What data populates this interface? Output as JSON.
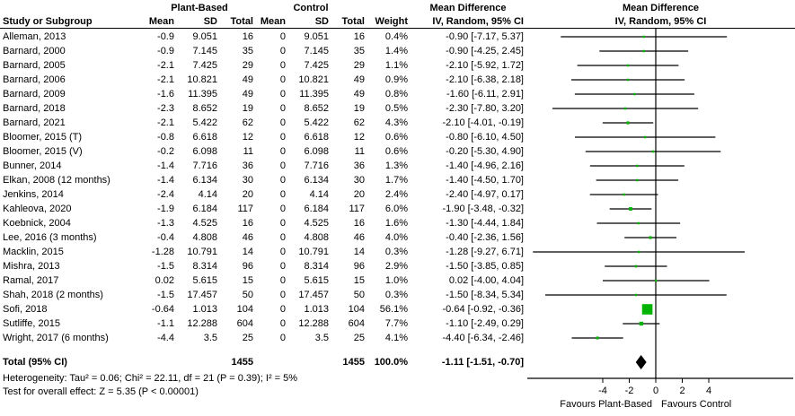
{
  "header": {
    "study_col": "Study or Subgroup",
    "group1": "Plant-Based",
    "group2": "Control",
    "mean_col": "Mean",
    "sd_col": "SD",
    "total_col": "Total",
    "weight_col": "Weight",
    "md_title_line1": "Mean Difference",
    "md_title_line2": "IV, Random, 95% CI",
    "plot_title_line1": "Mean Difference",
    "plot_title_line2": "IV, Random, 95% CI"
  },
  "chart_data": {
    "type": "forest",
    "effect_measure": "Mean Difference",
    "method": "IV, Random, 95% CI",
    "studies": [
      {
        "name": "Alleman, 2013",
        "mean1": "-0.9",
        "sd1": "9.051",
        "n1": "16",
        "mean2": "0",
        "sd2": "9.051",
        "n2": "16",
        "weight": "0.4%",
        "weight_pct": 0.4,
        "md": -0.9,
        "ci_low": -7.17,
        "ci_high": 5.37,
        "md_text": "-0.90 [-7.17, 5.37]"
      },
      {
        "name": "Barnard, 2000",
        "mean1": "-0.9",
        "sd1": "7.145",
        "n1": "35",
        "mean2": "0",
        "sd2": "7.145",
        "n2": "35",
        "weight": "1.4%",
        "weight_pct": 1.4,
        "md": -0.9,
        "ci_low": -4.25,
        "ci_high": 2.45,
        "md_text": "-0.90 [-4.25, 2.45]"
      },
      {
        "name": "Barnard, 2005",
        "mean1": "-2.1",
        "sd1": "7.425",
        "n1": "29",
        "mean2": "0",
        "sd2": "7.425",
        "n2": "29",
        "weight": "1.1%",
        "weight_pct": 1.1,
        "md": -2.1,
        "ci_low": -5.92,
        "ci_high": 1.72,
        "md_text": "-2.10 [-5.92, 1.72]"
      },
      {
        "name": "Barnard, 2006",
        "mean1": "-2.1",
        "sd1": "10.821",
        "n1": "49",
        "mean2": "0",
        "sd2": "10.821",
        "n2": "49",
        "weight": "0.9%",
        "weight_pct": 0.9,
        "md": -2.1,
        "ci_low": -6.38,
        "ci_high": 2.18,
        "md_text": "-2.10 [-6.38, 2.18]"
      },
      {
        "name": "Barnard, 2009",
        "mean1": "-1.6",
        "sd1": "11.395",
        "n1": "49",
        "mean2": "0",
        "sd2": "11.395",
        "n2": "49",
        "weight": "0.8%",
        "weight_pct": 0.8,
        "md": -1.6,
        "ci_low": -6.11,
        "ci_high": 2.91,
        "md_text": "-1.60 [-6.11, 2.91]"
      },
      {
        "name": "Barnard, 2018",
        "mean1": "-2.3",
        "sd1": "8.652",
        "n1": "19",
        "mean2": "0",
        "sd2": "8.652",
        "n2": "19",
        "weight": "0.5%",
        "weight_pct": 0.5,
        "md": -2.3,
        "ci_low": -7.8,
        "ci_high": 3.2,
        "md_text": "-2.30 [-7.80, 3.20]"
      },
      {
        "name": "Barnard, 2021",
        "mean1": "-2.1",
        "sd1": "5.422",
        "n1": "62",
        "mean2": "0",
        "sd2": "5.422",
        "n2": "62",
        "weight": "4.3%",
        "weight_pct": 4.3,
        "md": -2.1,
        "ci_low": -4.01,
        "ci_high": -0.19,
        "md_text": "-2.10 [-4.01, -0.19]"
      },
      {
        "name": "Bloomer, 2015 (T)",
        "mean1": "-0.8",
        "sd1": "6.618",
        "n1": "12",
        "mean2": "0",
        "sd2": "6.618",
        "n2": "12",
        "weight": "0.6%",
        "weight_pct": 0.6,
        "md": -0.8,
        "ci_low": -6.1,
        "ci_high": 4.5,
        "md_text": "-0.80 [-6.10, 4.50]"
      },
      {
        "name": "Bloomer, 2015 (V)",
        "mean1": "-0.2",
        "sd1": "6.098",
        "n1": "11",
        "mean2": "0",
        "sd2": "6.098",
        "n2": "11",
        "weight": "0.6%",
        "weight_pct": 0.6,
        "md": -0.2,
        "ci_low": -5.3,
        "ci_high": 4.9,
        "md_text": "-0.20 [-5.30, 4.90]"
      },
      {
        "name": "Bunner, 2014",
        "mean1": "-1.4",
        "sd1": "7.716",
        "n1": "36",
        "mean2": "0",
        "sd2": "7.716",
        "n2": "36",
        "weight": "1.3%",
        "weight_pct": 1.3,
        "md": -1.4,
        "ci_low": -4.96,
        "ci_high": 2.16,
        "md_text": "-1.40 [-4.96, 2.16]"
      },
      {
        "name": "Elkan, 2008 (12 months)",
        "mean1": "-1.4",
        "sd1": "6.134",
        "n1": "30",
        "mean2": "0",
        "sd2": "6.134",
        "n2": "30",
        "weight": "1.7%",
        "weight_pct": 1.7,
        "md": -1.4,
        "ci_low": -4.5,
        "ci_high": 1.7,
        "md_text": "-1.40 [-4.50, 1.70]"
      },
      {
        "name": "Jenkins, 2014",
        "mean1": "-2.4",
        "sd1": "4.14",
        "n1": "20",
        "mean2": "0",
        "sd2": "4.14",
        "n2": "20",
        "weight": "2.4%",
        "weight_pct": 2.4,
        "md": -2.4,
        "ci_low": -4.97,
        "ci_high": 0.17,
        "md_text": "-2.40 [-4.97, 0.17]"
      },
      {
        "name": "Kahleova, 2020",
        "mean1": "-1.9",
        "sd1": "6.184",
        "n1": "117",
        "mean2": "0",
        "sd2": "6.184",
        "n2": "117",
        "weight": "6.0%",
        "weight_pct": 6.0,
        "md": -1.9,
        "ci_low": -3.48,
        "ci_high": -0.32,
        "md_text": "-1.90 [-3.48, -0.32]"
      },
      {
        "name": "Koebnick, 2004",
        "mean1": "-1.3",
        "sd1": "4.525",
        "n1": "16",
        "mean2": "0",
        "sd2": "4.525",
        "n2": "16",
        "weight": "1.6%",
        "weight_pct": 1.6,
        "md": -1.3,
        "ci_low": -4.44,
        "ci_high": 1.84,
        "md_text": "-1.30 [-4.44, 1.84]"
      },
      {
        "name": "Lee, 2016 (3 months)",
        "mean1": "-0.4",
        "sd1": "4.808",
        "n1": "46",
        "mean2": "0",
        "sd2": "4.808",
        "n2": "46",
        "weight": "4.0%",
        "weight_pct": 4.0,
        "md": -0.4,
        "ci_low": -2.36,
        "ci_high": 1.56,
        "md_text": "-0.40 [-2.36, 1.56]"
      },
      {
        "name": "Macklin, 2015",
        "mean1": "-1.28",
        "sd1": "10.791",
        "n1": "14",
        "mean2": "0",
        "sd2": "10.791",
        "n2": "14",
        "weight": "0.3%",
        "weight_pct": 0.3,
        "md": -1.28,
        "ci_low": -9.27,
        "ci_high": 6.71,
        "md_text": "-1.28 [-9.27, 6.71]"
      },
      {
        "name": "Mishra, 2013",
        "mean1": "-1.5",
        "sd1": "8.314",
        "n1": "96",
        "mean2": "0",
        "sd2": "8.314",
        "n2": "96",
        "weight": "2.9%",
        "weight_pct": 2.9,
        "md": -1.5,
        "ci_low": -3.85,
        "ci_high": 0.85,
        "md_text": "-1.50 [-3.85, 0.85]"
      },
      {
        "name": "Ramal, 2017",
        "mean1": "0.02",
        "sd1": "5.615",
        "n1": "15",
        "mean2": "0",
        "sd2": "5.615",
        "n2": "15",
        "weight": "1.0%",
        "weight_pct": 1.0,
        "md": 0.02,
        "ci_low": -4.0,
        "ci_high": 4.04,
        "md_text": "0.02 [-4.00, 4.04]"
      },
      {
        "name": "Shah, 2018 (2 months)",
        "mean1": "-1.5",
        "sd1": "17.457",
        "n1": "50",
        "mean2": "0",
        "sd2": "17.457",
        "n2": "50",
        "weight": "0.3%",
        "weight_pct": 0.3,
        "md": -1.5,
        "ci_low": -8.34,
        "ci_high": 5.34,
        "md_text": "-1.50 [-8.34, 5.34]"
      },
      {
        "name": "Sofi, 2018",
        "mean1": "-0.64",
        "sd1": "1.013",
        "n1": "104",
        "mean2": "0",
        "sd2": "1.013",
        "n2": "104",
        "weight": "56.1%",
        "weight_pct": 56.1,
        "md": -0.64,
        "ci_low": -0.92,
        "ci_high": -0.36,
        "md_text": "-0.64 [-0.92, -0.36]"
      },
      {
        "name": "Sutliffe, 2015",
        "mean1": "-1.1",
        "sd1": "12.288",
        "n1": "604",
        "mean2": "0",
        "sd2": "12.288",
        "n2": "604",
        "weight": "7.7%",
        "weight_pct": 7.7,
        "md": -1.1,
        "ci_low": -2.49,
        "ci_high": 0.29,
        "md_text": "-1.10 [-2.49, 0.29]"
      },
      {
        "name": "Wright, 2017 (6 months)",
        "mean1": "-4.4",
        "sd1": "3.5",
        "n1": "25",
        "mean2": "0",
        "sd2": "3.5",
        "n2": "25",
        "weight": "4.1%",
        "weight_pct": 4.1,
        "md": -4.4,
        "ci_low": -6.34,
        "ci_high": -2.46,
        "md_text": "-4.40 [-6.34, -2.46]"
      }
    ],
    "total": {
      "label": "Total (95% CI)",
      "n1": "1455",
      "n2": "1455",
      "weight": "100.0%",
      "md": -1.11,
      "ci_low": -1.51,
      "ci_high": -0.7,
      "md_text": "-1.11 [-1.51, -0.70]"
    },
    "axis": {
      "ticks": [
        -4,
        -2,
        0,
        2,
        4
      ],
      "tick_labels": [
        "-4",
        "-2",
        "0",
        "2",
        "4"
      ],
      "left_label": "Favours Plant-Based",
      "right_label": "Favours Control"
    }
  },
  "footer": {
    "heterogeneity": "Heterogeneity: Tau² = 0.06; Chi² = 22.11, df = 21 (P = 0.39); I² = 5%",
    "overall_effect": "Test for overall effect: Z = 5.35 (P < 0.00001)"
  },
  "colors": {
    "marker_green": "#00b300",
    "diamond_black": "#000000",
    "line_black": "#000000"
  }
}
